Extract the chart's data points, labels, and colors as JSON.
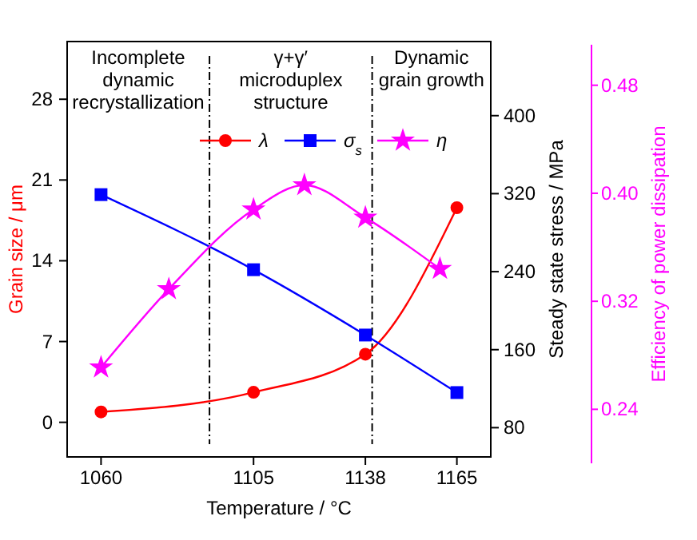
{
  "chart_data": {
    "type": "line",
    "xlabel": "Temperature / °C",
    "ylabel": "Grain size / μm",
    "y2label": "Steady state stress / MPa",
    "y3label": "Efficiency of power dissipation",
    "xlim": [
      1050,
      1175
    ],
    "xticks": [
      1060,
      1105,
      1138,
      1165
    ],
    "ylim": [
      -3,
      33
    ],
    "yticks": [
      0,
      7,
      14,
      21,
      28
    ],
    "y2lim": [
      50,
      476
    ],
    "y2ticks": [
      80,
      160,
      240,
      320,
      400
    ],
    "y3lim": [
      0.2,
      0.51
    ],
    "y3ticks": [
      {
        "value": 0.24,
        "label": "0.24"
      },
      {
        "value": 0.32,
        "label": "0.32"
      },
      {
        "value": 0.4,
        "label": "0.40"
      },
      {
        "value": 0.48,
        "label": "0.48"
      }
    ],
    "legend": "top",
    "line_style": "solid",
    "series": [
      {
        "name": "λ",
        "color": "#ff0000",
        "marker": "circle",
        "x": [
          1060,
          1105,
          1138,
          1165
        ],
        "values": [
          0.9,
          2.6,
          5.9,
          18.6
        ]
      },
      {
        "name": "σ$_{s}$",
        "color": "#0000ff",
        "marker": "square",
        "axis": "y2",
        "x": [
          1060,
          1105,
          1138,
          1165
        ],
        "values": [
          319,
          242,
          175,
          116
        ]
      },
      {
        "name": "η",
        "color": "#ff00ff",
        "marker": "star",
        "axis": "y3",
        "x": [
          1060,
          1080,
          1105,
          1120,
          1138,
          1160
        ],
        "values": [
          0.271,
          0.329,
          0.388,
          0.406,
          0.382,
          0.344
        ]
      }
    ],
    "ref_lines": [
      {
        "axis": "x",
        "value": 1092,
        "line_style": "dashdot"
      },
      {
        "axis": "x",
        "value": 1140,
        "line_style": "dashdot"
      }
    ],
    "annotations": [
      "Incomplete\ndynamic\nrecrystallization",
      "γ+γ′\nmicroduplex\nstructure",
      "Dynamic\ngrain growth"
    ]
  }
}
